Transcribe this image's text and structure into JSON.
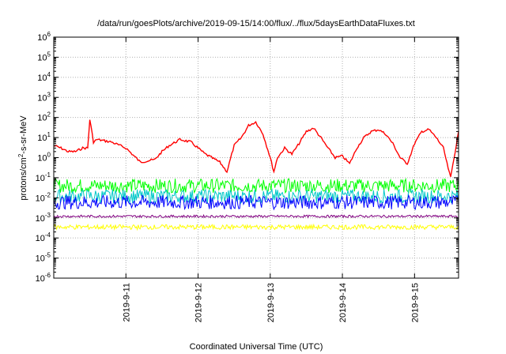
{
  "chart_data": {
    "type": "line",
    "title": "/data/run/goesPlots/archive/2019-09-15/14:00/flux/../flux/5daysEarthDataFluxes.txt",
    "xlabel": "Coordinated Universal Time (UTC)",
    "ylabel_parts": {
      "base": "protons/cm",
      "sup": "2",
      "rest": "-s-sr-MeV"
    },
    "y_scale": "log",
    "ylim": [
      1e-06,
      1000000.0
    ],
    "y_ticks": [
      {
        "exp": "-6"
      },
      {
        "exp": "-5"
      },
      {
        "exp": "-4"
      },
      {
        "exp": "-3"
      },
      {
        "exp": "-2"
      },
      {
        "exp": "-1"
      },
      {
        "exp": "0"
      },
      {
        "exp": "1"
      },
      {
        "exp": "2"
      },
      {
        "exp": "3"
      },
      {
        "exp": "4"
      },
      {
        "exp": "5"
      },
      {
        "exp": "6"
      }
    ],
    "xlim_days": [
      10.0,
      15.61
    ],
    "x_ticks": [
      {
        "label": "2019-9-11",
        "day": 11
      },
      {
        "label": "2019-9-12",
        "day": 12
      },
      {
        "label": "2019-9-13",
        "day": 13
      },
      {
        "label": "2019-9-14",
        "day": 14
      },
      {
        "label": "2019-9-15",
        "day": 15
      }
    ],
    "grid": true,
    "series": [
      {
        "color": "#ff0000",
        "x": [
          10.0,
          10.1,
          10.2,
          10.3,
          10.4,
          10.47,
          10.5,
          10.55,
          10.6,
          10.8,
          11.0,
          11.2,
          11.4,
          11.5,
          11.6,
          11.75,
          11.9,
          12.1,
          12.3,
          12.4,
          12.5,
          12.6,
          12.7,
          12.8,
          12.9,
          13.0,
          13.05,
          13.1,
          13.2,
          13.3,
          13.4,
          13.5,
          13.6,
          13.7,
          13.8,
          13.9,
          14.0,
          14.1,
          14.2,
          14.3,
          14.4,
          14.5,
          14.6,
          14.7,
          14.8,
          14.9,
          15.0,
          15.1,
          15.2,
          15.3,
          15.4,
          15.45,
          15.5,
          15.61
        ],
        "y": [
          4,
          3,
          2,
          2,
          3,
          3,
          80,
          6,
          8,
          6,
          3,
          0.6,
          0.8,
          2,
          4,
          8,
          6,
          1.5,
          0.6,
          0.2,
          4,
          10,
          40,
          60,
          15,
          1,
          0.2,
          1,
          3,
          1.5,
          5,
          20,
          30,
          10,
          3,
          1,
          1.2,
          0.5,
          3,
          10,
          20,
          25,
          15,
          5,
          1,
          0.5,
          5,
          20,
          25,
          10,
          3,
          0.5,
          0.1,
          20
        ]
      },
      {
        "color": "#00ff00",
        "base": 0.04,
        "spread": 0.35
      },
      {
        "color": "#00c8c8",
        "base": 0.012,
        "spread": 0.35
      },
      {
        "color": "#0000ff",
        "base": 0.006,
        "spread": 0.35
      },
      {
        "color": "#800080",
        "base": 0.0012,
        "spread": 0.06
      },
      {
        "color": "#ffff00",
        "base": 0.00035,
        "spread": 0.12
      }
    ]
  }
}
